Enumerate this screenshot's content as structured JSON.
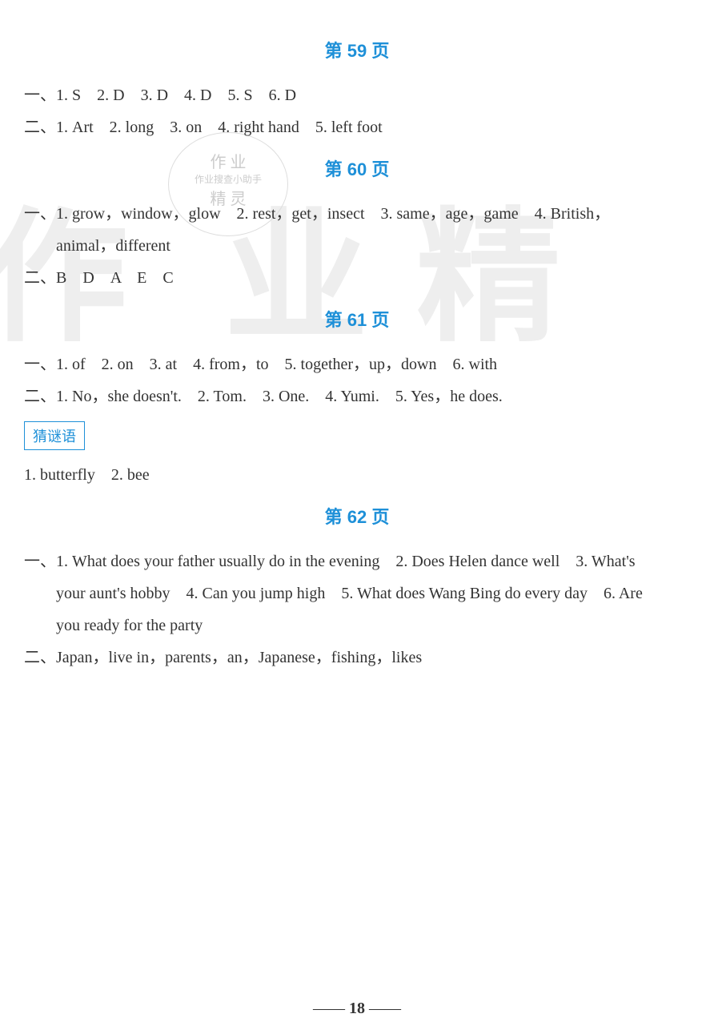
{
  "colors": {
    "header_color": "#1E90D8",
    "text_color": "#333333",
    "watermark_color": "#eeeeee",
    "stamp_color": "#cccccc"
  },
  "typography": {
    "body_fontsize": 20,
    "header_fontsize": 22,
    "footer_fontsize": 20
  },
  "watermark": {
    "char1": "作",
    "char2": "业",
    "char3": "精"
  },
  "stamp": {
    "line1": "作 业",
    "line2": "作业搜查小助手",
    "line3": "精 灵"
  },
  "sections": [
    {
      "header": "第 59 页",
      "lines": [
        {
          "type": "plain",
          "text": "一、1. S　2. D　3. D　4. D　5. S　6. D"
        },
        {
          "type": "plain",
          "text": "二、1. Art　2. long　3. on　4. right hand　5. left foot"
        }
      ]
    },
    {
      "header": "第 60 页",
      "lines": [
        {
          "type": "plain",
          "text": "一、1. grow，window，glow　2. rest，get，insect　3. same，age，game　4. British，"
        },
        {
          "type": "indent",
          "text": "animal，different"
        },
        {
          "type": "plain",
          "text": "二、B　D　A　E　C"
        }
      ]
    },
    {
      "header": "第 61 页",
      "lines": [
        {
          "type": "plain",
          "text": "一、1. of　2. on　3. at　4. from，to　5. together，up，down　6. with"
        },
        {
          "type": "plain",
          "text": "二、1. No，she doesn't.　2. Tom.　3. One.　4. Yumi.　5. Yes，he does."
        }
      ]
    }
  ],
  "riddle": {
    "label": "猜谜语",
    "line": "1. butterfly　2. bee"
  },
  "section62": {
    "header": "第 62 页",
    "lines": [
      {
        "type": "plain",
        "text": "一、1. What does your father usually do in the evening　2. Does Helen dance well　3. What's"
      },
      {
        "type": "indent",
        "text": "your aunt's hobby　4. Can you jump high　5. What does Wang Bing do every day　6. Are"
      },
      {
        "type": "indent",
        "text": "you ready for the party"
      },
      {
        "type": "plain",
        "text": "二、Japan，live in，parents，an，Japanese，fishing，likes"
      }
    ]
  },
  "footer": {
    "prefix": "——",
    "page": "18",
    "suffix": "——"
  }
}
